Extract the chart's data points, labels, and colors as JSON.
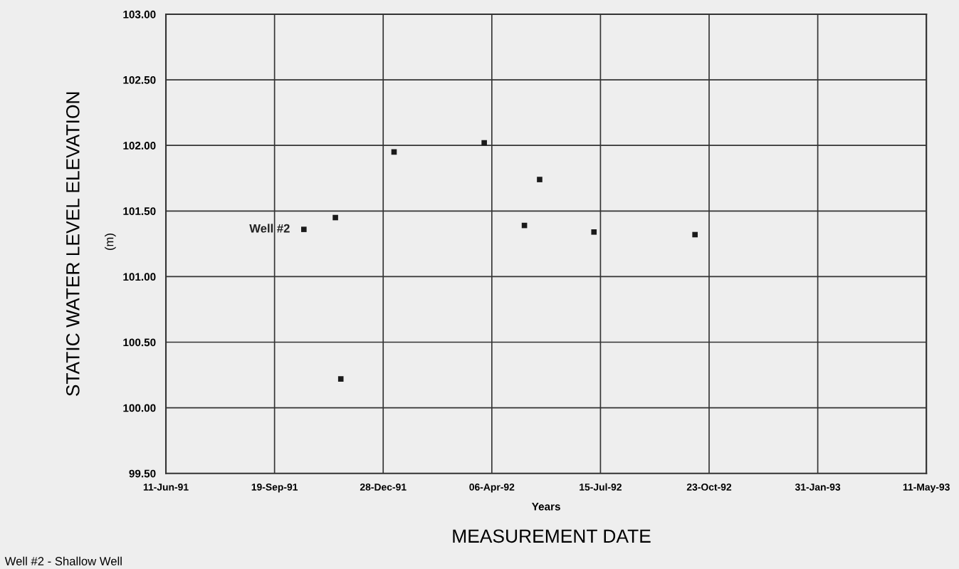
{
  "chart_data": {
    "type": "scatter",
    "xlabel": "Years",
    "ylabel": "STATIC WATER LEVEL ELEVATION",
    "annotations": [
      "(m)",
      "MEASUREMENT DATE",
      "Well #2 - Shallow Well"
    ],
    "x": [
      "1991-10-16",
      "1991-11-14",
      "1991-11-19",
      "1992-01-07",
      "1992-03-30",
      "1992-05-06",
      "1992-05-20",
      "1992-07-09",
      "1992-10-10"
    ],
    "series": [
      {
        "name": "Well #2",
        "color": "#1a1a1a",
        "values": [
          101.36,
          101.45,
          100.22,
          101.95,
          102.02,
          101.39,
          101.74,
          101.34,
          101.32
        ]
      }
    ],
    "marker": "square",
    "grid": true,
    "xlim": [
      "1991-06-11",
      "1993-05-11"
    ],
    "xticks": [
      {
        "value": "1991-06-11",
        "label": "11-Jun-91"
      },
      {
        "value": "1991-09-19",
        "label": "19-Sep-91"
      },
      {
        "value": "1991-12-28",
        "label": "28-Dec-91"
      },
      {
        "value": "1992-04-06",
        "label": "06-Apr-92"
      },
      {
        "value": "1992-07-15",
        "label": "15-Jul-92"
      },
      {
        "value": "1992-10-23",
        "label": "23-Oct-92"
      },
      {
        "value": "1993-01-31",
        "label": "31-Jan-93"
      },
      {
        "value": "1993-05-11",
        "label": "11-May-93"
      }
    ],
    "ylim": [
      99.5,
      103
    ],
    "yticks": [
      {
        "value": 99.5,
        "label": "99.50"
      },
      {
        "value": 100,
        "label": "100.00"
      },
      {
        "value": 100.5,
        "label": "100.50"
      },
      {
        "value": 101,
        "label": "101.00"
      },
      {
        "value": 101.5,
        "label": "101.50"
      },
      {
        "value": 102,
        "label": "102.00"
      },
      {
        "value": 102.5,
        "label": "102.50"
      },
      {
        "value": 103,
        "label": "103.00"
      }
    ]
  }
}
